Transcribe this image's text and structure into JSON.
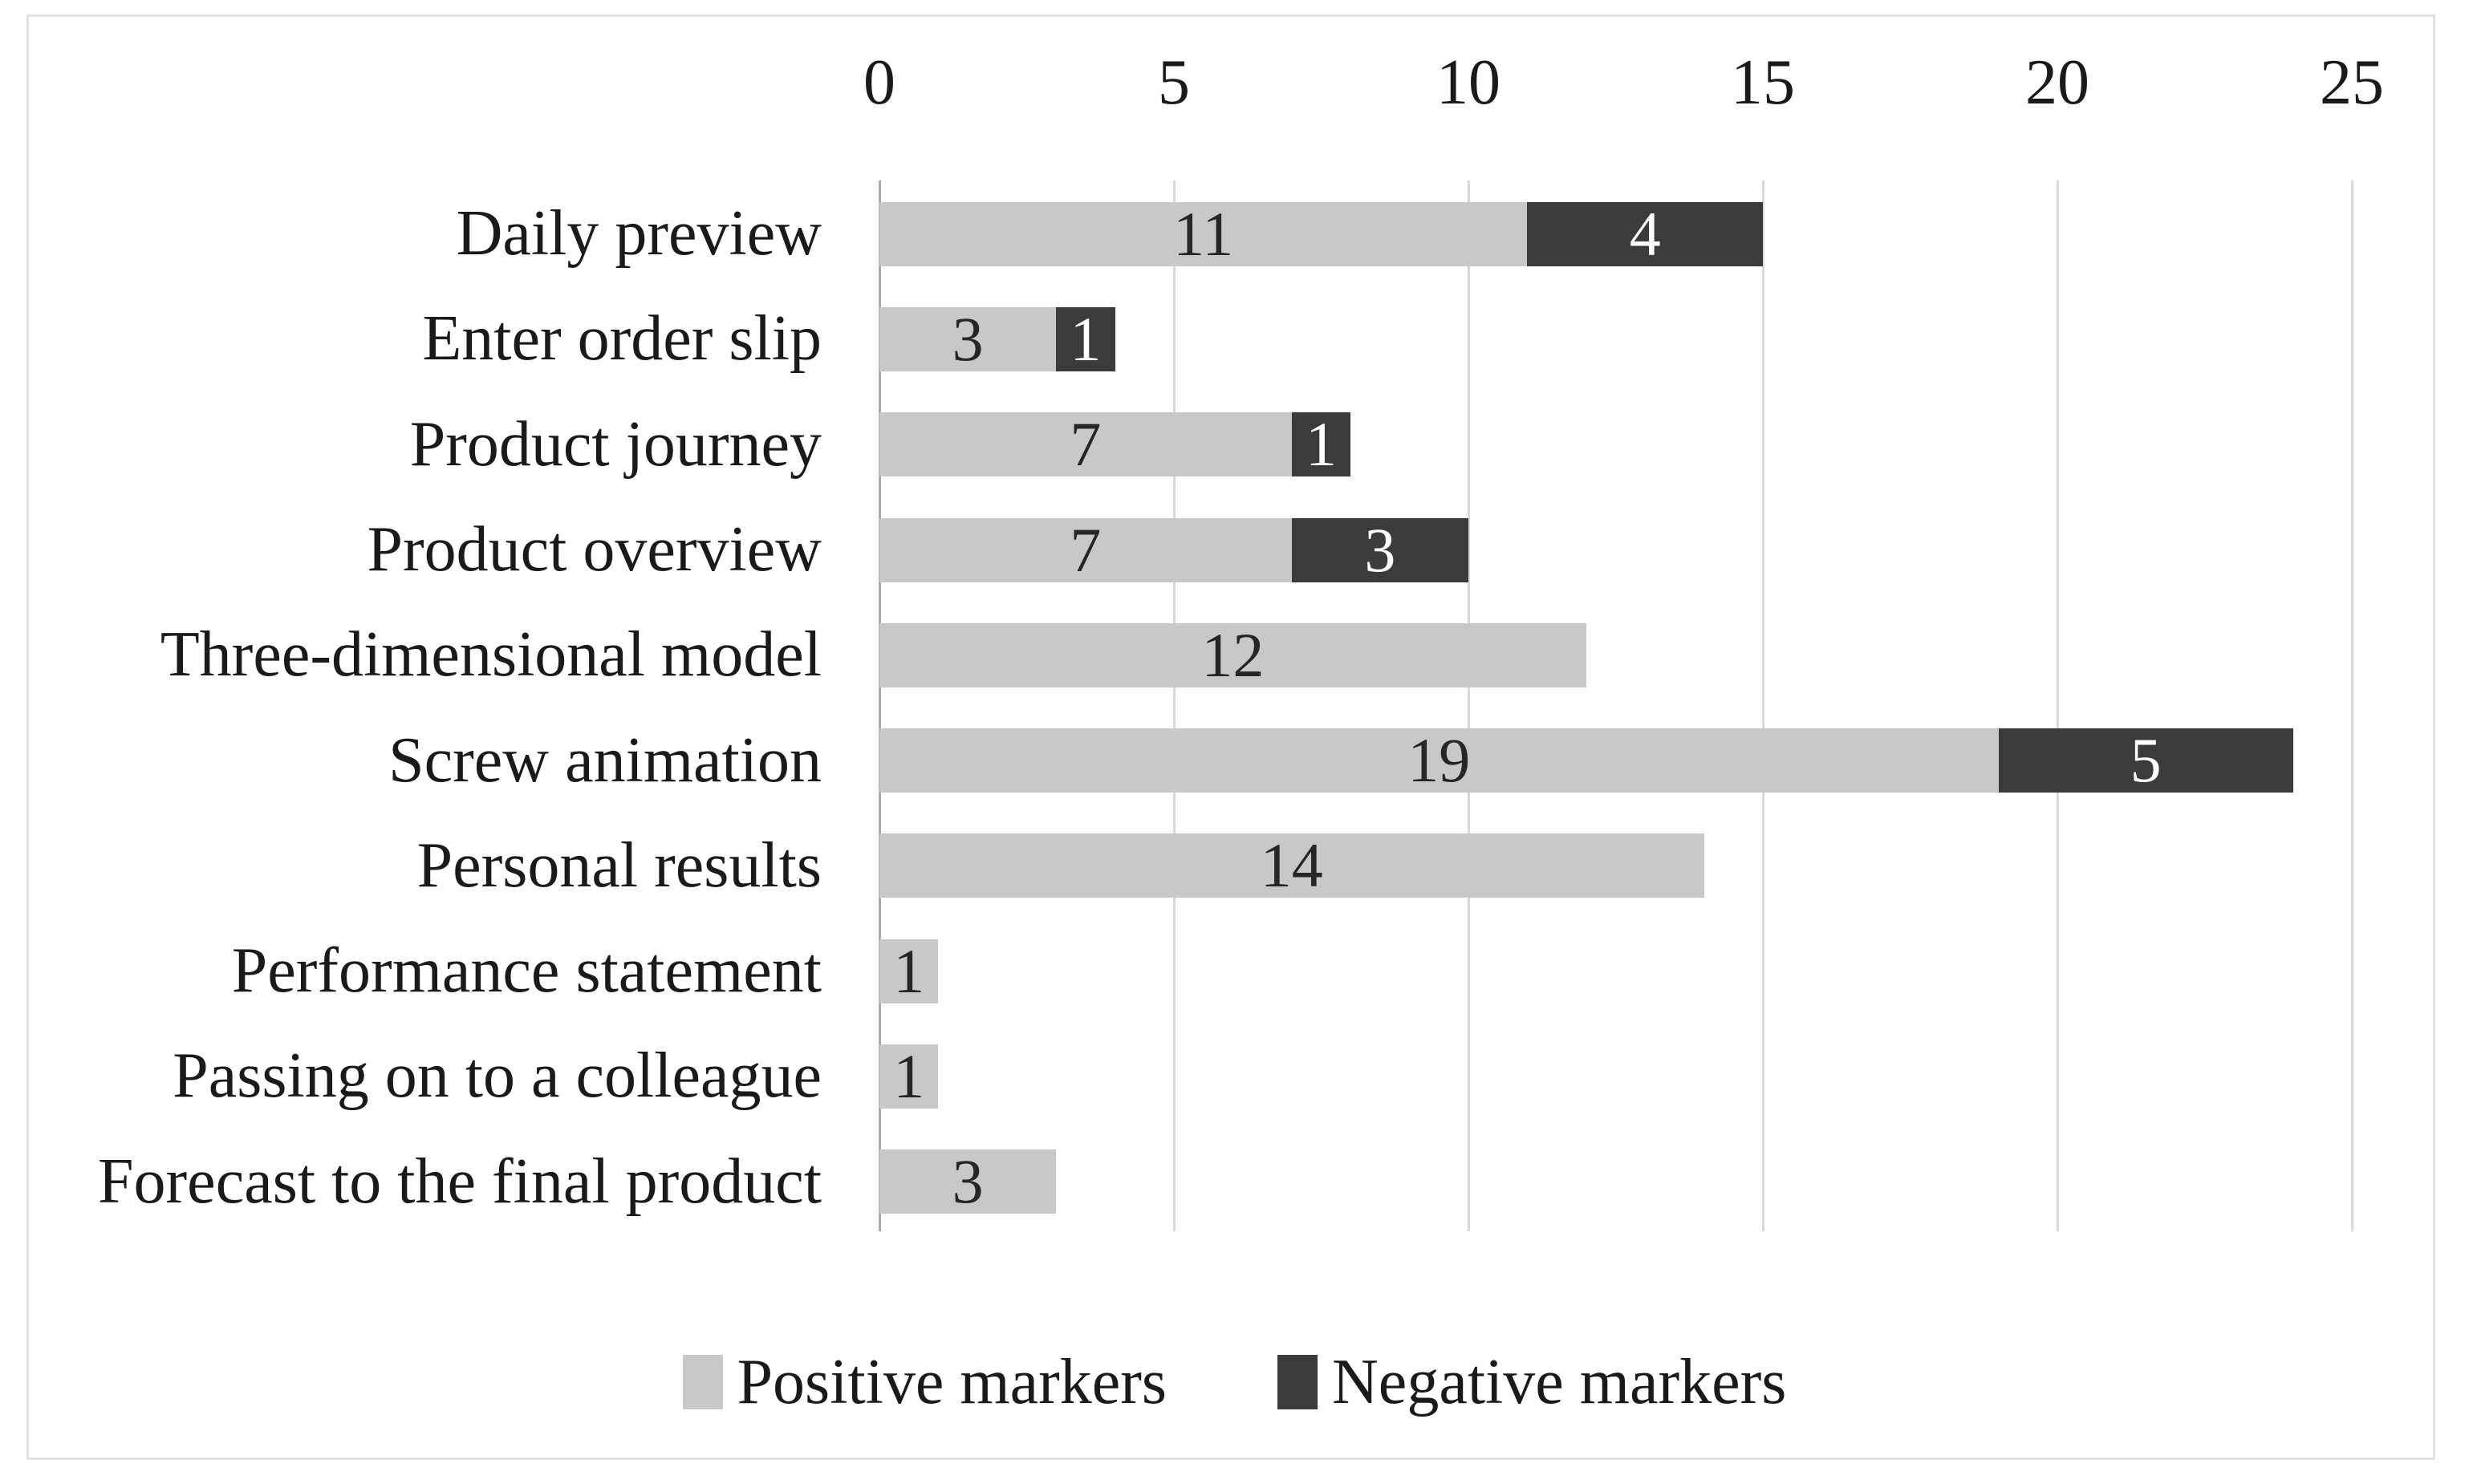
{
  "figure": {
    "background": "#ffffff",
    "border_color": "#e2e2e2"
  },
  "chart_data": {
    "type": "bar",
    "orientation": "horizontal",
    "stacked": true,
    "title": "",
    "xlabel": "",
    "ylabel": "",
    "categories": [
      "Daily preview",
      "Enter order slip",
      "Product journey",
      "Product overview",
      "Three-dimensional model",
      "Screw animation",
      "Personal results",
      "Performance statement",
      "Passing on to a colleague",
      "Forecast to the final product"
    ],
    "series": [
      {
        "name": "Positive markers",
        "color": "#c8c8c8",
        "label_color": "#262626",
        "values": [
          11,
          3,
          7,
          7,
          12,
          19,
          14,
          1,
          1,
          3
        ]
      },
      {
        "name": "Negative markers",
        "color": "#3b3b3b",
        "label_color": "#ffffff",
        "values": [
          4,
          1,
          1,
          3,
          0,
          5,
          0,
          0,
          0,
          0
        ]
      }
    ],
    "x_axis": {
      "min": 0,
      "max": 25,
      "ticks": [
        0,
        5,
        10,
        15,
        20,
        25
      ],
      "position": "top"
    },
    "gridlines": {
      "show": true,
      "color": "#d9d9d9",
      "axis_line_color": "#ababab"
    },
    "legend": {
      "position": "bottom"
    },
    "data_labels": {
      "show": true
    }
  }
}
